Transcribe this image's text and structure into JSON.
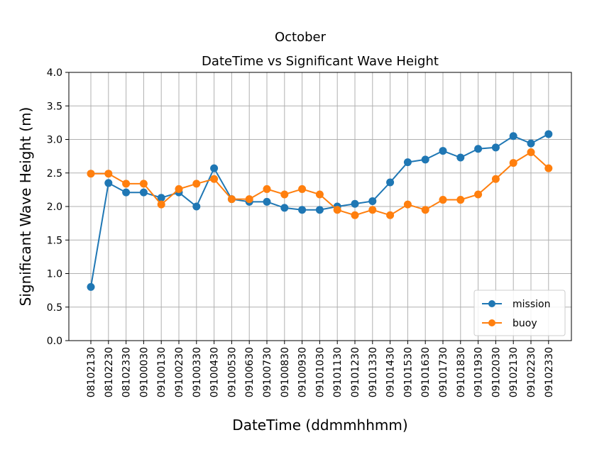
{
  "figure": {
    "suptitle": "October",
    "title": "DateTime vs Significant Wave Height"
  },
  "chart_data": {
    "type": "line",
    "title": "DateTime vs Significant Wave Height",
    "xlabel": "DateTime (ddmmhhmm)",
    "ylabel": "Significant Wave Height (m)",
    "categories": [
      "08102130",
      "08102230",
      "08102330",
      "09100030",
      "09100130",
      "09100230",
      "09100330",
      "09100430",
      "09100530",
      "09100630",
      "09100730",
      "09100830",
      "09100930",
      "09101030",
      "09101130",
      "09101230",
      "09101330",
      "09101430",
      "09101530",
      "09101630",
      "09101730",
      "09101830",
      "09101930",
      "09102030",
      "09102130",
      "09102230",
      "09102330"
    ],
    "ylim": [
      0,
      4.0
    ],
    "yticks": [
      "0.0",
      "0.5",
      "1.0",
      "1.5",
      "2.0",
      "2.5",
      "3.0",
      "3.5",
      "4.0"
    ],
    "grid": true,
    "legend_position": "bottom-right",
    "series": [
      {
        "name": "mission",
        "color": "#1f77b4",
        "values": [
          0.8,
          2.35,
          2.21,
          2.21,
          2.13,
          2.21,
          2.0,
          2.57,
          2.11,
          2.07,
          2.07,
          1.98,
          1.95,
          1.95,
          2.0,
          2.04,
          2.08,
          2.36,
          2.66,
          2.7,
          2.83,
          2.73,
          2.86,
          2.88,
          3.05,
          2.94,
          3.08
        ]
      },
      {
        "name": "buoy",
        "color": "#ff7f0e",
        "values": [
          2.49,
          2.49,
          2.34,
          2.34,
          2.03,
          2.26,
          2.34,
          2.41,
          2.11,
          2.11,
          2.26,
          2.18,
          2.26,
          2.18,
          1.95,
          1.87,
          1.95,
          1.87,
          2.03,
          1.95,
          2.1,
          2.1,
          2.18,
          2.41,
          2.65,
          2.81,
          2.57
        ]
      }
    ]
  }
}
